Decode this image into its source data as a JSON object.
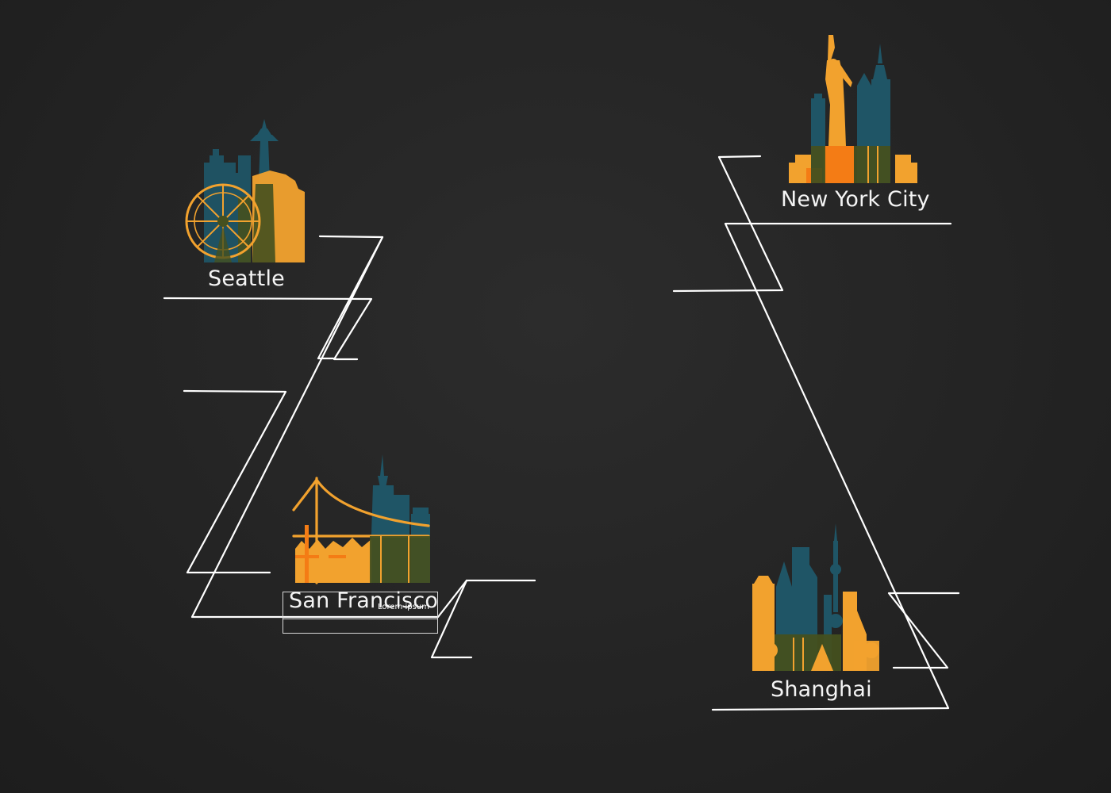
{
  "cities": {
    "seattle": {
      "label": "Seattle"
    },
    "san_francisco": {
      "label": "San Francisco",
      "caption": "Lorem ipsum"
    },
    "new_york": {
      "label": "New York City"
    },
    "shanghai": {
      "label": "Shanghai"
    }
  },
  "colors": {
    "background": "#232323",
    "line": "#ffffff",
    "orange": "#f2a22e",
    "deep_orange": "#f47c15",
    "teal": "#1f5566",
    "olive": "#45501f"
  }
}
